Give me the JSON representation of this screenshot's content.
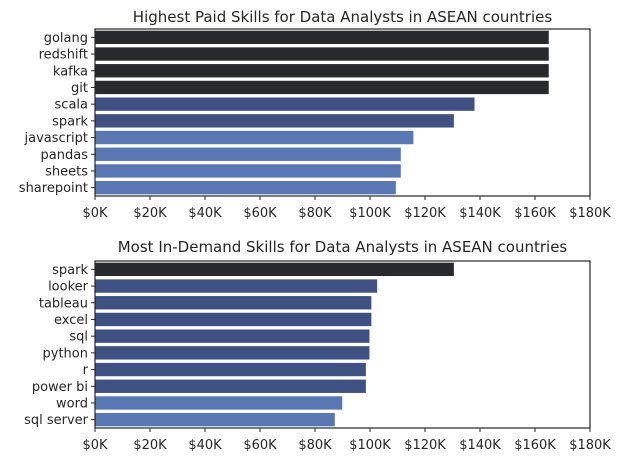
{
  "chart_data": [
    {
      "type": "bar",
      "orientation": "horizontal",
      "title": "Highest Paid Skills for Data Analysts in ASEAN countries",
      "xlabel": "",
      "ylabel": "",
      "categories": [
        "golang",
        "redshift",
        "kafka",
        "git",
        "scala",
        "spark",
        "javascript",
        "pandas",
        "sheets",
        "sharepoint"
      ],
      "values": [
        165000,
        165000,
        165000,
        165000,
        138000,
        130500,
        115800,
        111200,
        111200,
        109400
      ],
      "xlim": [
        0,
        180000
      ],
      "xticks": [
        0,
        20000,
        40000,
        60000,
        80000,
        100000,
        120000,
        140000,
        160000,
        180000
      ],
      "xtick_labels": [
        "$0K",
        "$20K",
        "$40K",
        "$60K",
        "$80K",
        "$100K",
        "$120K",
        "$140K",
        "$160K",
        "$180K"
      ],
      "colors": [
        "#27292d",
        "#27292d",
        "#27292d",
        "#27292d",
        "#3f5182",
        "#3f5182",
        "#5877b3",
        "#5877b3",
        "#5877b3",
        "#5877b3"
      ],
      "grid": false,
      "legend": "none"
    },
    {
      "type": "bar",
      "orientation": "horizontal",
      "title": "Most In-Demand Skills for Data Analysts in ASEAN countries",
      "xlabel": "",
      "ylabel": "",
      "categories": [
        "spark",
        "looker",
        "tableau",
        "excel",
        "sql",
        "python",
        "r",
        "power bi",
        "word",
        "sql server"
      ],
      "values": [
        130500,
        102600,
        100500,
        100500,
        99800,
        99800,
        98500,
        98500,
        89900,
        87200
      ],
      "xlim": [
        0,
        180000
      ],
      "xticks": [
        0,
        20000,
        40000,
        60000,
        80000,
        100000,
        120000,
        140000,
        160000,
        180000
      ],
      "xtick_labels": [
        "$0K",
        "$20K",
        "$40K",
        "$60K",
        "$80K",
        "$100K",
        "$120K",
        "$140K",
        "$160K",
        "$180K"
      ],
      "colors": [
        "#27292d",
        "#3f5182",
        "#3f5182",
        "#3f5182",
        "#3f5182",
        "#3f5182",
        "#3f5182",
        "#3f5182",
        "#5877b3",
        "#5877b3"
      ],
      "grid": false,
      "legend": "none"
    }
  ]
}
